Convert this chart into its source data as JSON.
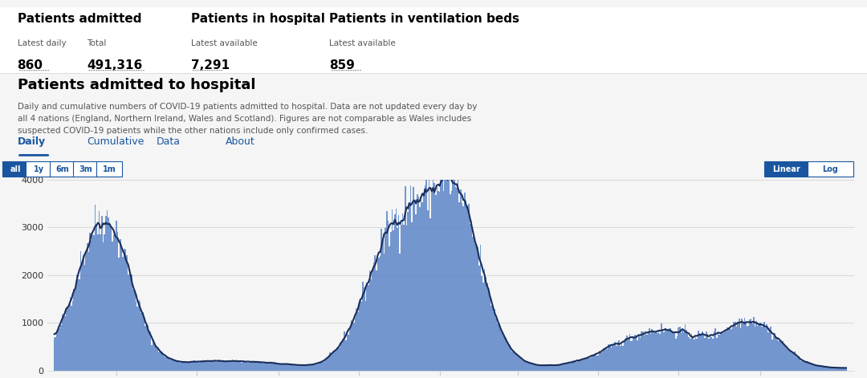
{
  "title_header": "Patients admitted to hospital",
  "subtitle": "Daily and cumulative numbers of COVID-19 patients admitted to hospital. Data are not updated every day by\nall 4 nations (England, Northern Ireland, Wales and Scotland). Figures are not comparable as Wales includes\nsuspected COVID-19 patients while the other nations include only confirmed cases.",
  "stat1_title": "Patients admitted",
  "stat1_sub1": "Latest daily",
  "stat1_sub2": "Total",
  "stat1_val1": "860",
  "stat1_val2": "491,316",
  "stat2_title": "Patients in hospital",
  "stat2_sub": "Latest available",
  "stat2_val": "7,291",
  "stat3_title": "Patients in ventilation beds",
  "stat3_sub": "Latest available",
  "stat3_val": "859",
  "bar_color": "#5c85c8",
  "line_color": "#1a2e5a",
  "background_top": "#ffffff",
  "background_chart": "#f5f5f5",
  "ylim": [
    0,
    4000
  ],
  "yticks": [
    0,
    1000,
    2000,
    3000,
    4000
  ],
  "nav_tabs": [
    "Daily",
    "Cumulative",
    "Data",
    "About"
  ],
  "nav_buttons": [
    "all",
    "1y",
    "6m",
    "3m",
    "1m"
  ],
  "active_tab": "Daily",
  "active_button": "all",
  "linear_log_buttons": [
    "Linear",
    "Log"
  ],
  "active_linear": "Linear"
}
